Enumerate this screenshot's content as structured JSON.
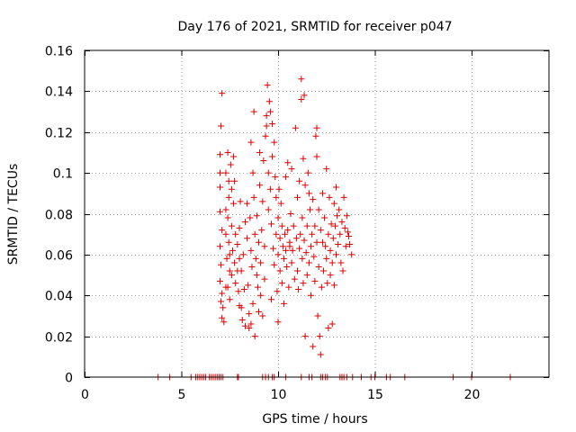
{
  "chart_data": {
    "type": "scatter",
    "title": "Day 176 of 2021, SRMTID for receiver p047",
    "xlabel": "GPS time / hours",
    "ylabel": "SRMTID / TECUs",
    "xlim": [
      0,
      24
    ],
    "ylim": [
      0,
      0.16
    ],
    "x_ticks": [
      0,
      5,
      10,
      15,
      20
    ],
    "x_tick_labels": [
      "0",
      "5",
      "10",
      "15",
      "20"
    ],
    "y_ticks": [
      0,
      0.02,
      0.04,
      0.06,
      0.08,
      0.1,
      0.12,
      0.14,
      0.16
    ],
    "y_tick_labels": [
      "0",
      "0.02",
      "0.04",
      "0.06",
      "0.08",
      "0.1",
      "0.12",
      "0.14",
      "0.16"
    ],
    "grid": true,
    "marker": "+",
    "color": "#dd0000",
    "points": [
      [
        7.1,
        0.139
      ],
      [
        7.05,
        0.123
      ],
      [
        7.0,
        0.109
      ],
      [
        7.0,
        0.1
      ],
      [
        7.0,
        0.093
      ],
      [
        7.0,
        0.081
      ],
      [
        7.1,
        0.072
      ],
      [
        7.0,
        0.064
      ],
      [
        7.05,
        0.055
      ],
      [
        7.0,
        0.047
      ],
      [
        7.1,
        0.041
      ],
      [
        7.05,
        0.037
      ],
      [
        7.15,
        0.034
      ],
      [
        7.1,
        0.029
      ],
      [
        7.2,
        0.027
      ],
      [
        7.3,
        0.1
      ],
      [
        7.3,
        0.082
      ],
      [
        7.3,
        0.07
      ],
      [
        7.35,
        0.058
      ],
      [
        7.3,
        0.044
      ],
      [
        7.4,
        0.11
      ],
      [
        7.45,
        0.096
      ],
      [
        7.45,
        0.088
      ],
      [
        7.4,
        0.078
      ],
      [
        7.45,
        0.066
      ],
      [
        7.5,
        0.06
      ],
      [
        7.5,
        0.052
      ],
      [
        7.4,
        0.044
      ],
      [
        7.5,
        0.038
      ],
      [
        7.55,
        0.104
      ],
      [
        7.6,
        0.092
      ],
      [
        7.6,
        0.074
      ],
      [
        7.65,
        0.062
      ],
      [
        7.6,
        0.05
      ],
      [
        7.7,
        0.108
      ],
      [
        7.75,
        0.096
      ],
      [
        7.7,
        0.085
      ],
      [
        7.8,
        0.07
      ],
      [
        7.75,
        0.056
      ],
      [
        7.8,
        0.046
      ],
      [
        7.9,
        0.065
      ],
      [
        7.9,
        0.052
      ],
      [
        7.95,
        0.042
      ],
      [
        8.0,
        0.058
      ],
      [
        8.0,
        0.035
      ],
      [
        8.0,
        0.073
      ],
      [
        8.05,
        0.086
      ],
      [
        8.1,
        0.052
      ],
      [
        8.1,
        0.034
      ],
      [
        8.15,
        0.028
      ],
      [
        8.2,
        0.06
      ],
      [
        8.25,
        0.043
      ],
      [
        8.3,
        0.025
      ],
      [
        8.3,
        0.076
      ],
      [
        8.4,
        0.085
      ],
      [
        8.4,
        0.068
      ],
      [
        8.45,
        0.045
      ],
      [
        8.5,
        0.031
      ],
      [
        8.5,
        0.024
      ],
      [
        8.55,
        0.078
      ],
      [
        8.6,
        0.115
      ],
      [
        8.6,
        0.062
      ],
      [
        8.6,
        0.026
      ],
      [
        8.65,
        0.054
      ],
      [
        8.7,
        0.036
      ],
      [
        8.7,
        0.1
      ],
      [
        8.75,
        0.13
      ],
      [
        8.75,
        0.088
      ],
      [
        8.8,
        0.07
      ],
      [
        8.8,
        0.02
      ],
      [
        8.85,
        0.058
      ],
      [
        8.9,
        0.05
      ],
      [
        8.9,
        0.079
      ],
      [
        8.95,
        0.044
      ],
      [
        9.0,
        0.066
      ],
      [
        9.0,
        0.032
      ],
      [
        9.05,
        0.094
      ],
      [
        9.05,
        0.11
      ],
      [
        9.1,
        0.056
      ],
      [
        9.1,
        0.04
      ],
      [
        9.15,
        0.072
      ],
      [
        9.2,
        0.086
      ],
      [
        9.2,
        0.03
      ],
      [
        9.25,
        0.106
      ],
      [
        9.3,
        0.064
      ],
      [
        9.3,
        0.048
      ],
      [
        9.35,
        0.118
      ],
      [
        9.4,
        0.123
      ],
      [
        9.45,
        0.143
      ],
      [
        9.4,
        0.128
      ],
      [
        9.5,
        0.1
      ],
      [
        9.5,
        0.082
      ],
      [
        9.55,
        0.135
      ],
      [
        9.6,
        0.13
      ],
      [
        9.6,
        0.092
      ],
      [
        9.65,
        0.075
      ],
      [
        9.65,
        0.038
      ],
      [
        9.7,
        0.124
      ],
      [
        9.7,
        0.108
      ],
      [
        9.75,
        0.063
      ],
      [
        9.8,
        0.115
      ],
      [
        9.8,
        0.055
      ],
      [
        9.85,
        0.098
      ],
      [
        9.9,
        0.07
      ],
      [
        9.9,
        0.088
      ],
      [
        9.95,
        0.042
      ],
      [
        10.0,
        0.078
      ],
      [
        10.0,
        0.06
      ],
      [
        10.0,
        0.027
      ],
      [
        10.05,
        0.092
      ],
      [
        10.1,
        0.068
      ],
      [
        10.1,
        0.052
      ],
      [
        10.15,
        0.085
      ],
      [
        10.2,
        0.074
      ],
      [
        10.2,
        0.046
      ],
      [
        10.25,
        0.064
      ],
      [
        10.3,
        0.058
      ],
      [
        10.3,
        0.036
      ],
      [
        10.35,
        0.07
      ],
      [
        10.4,
        0.098
      ],
      [
        10.4,
        0.062
      ],
      [
        10.45,
        0.054
      ],
      [
        10.5,
        0.105
      ],
      [
        10.5,
        0.072
      ],
      [
        10.55,
        0.044
      ],
      [
        10.6,
        0.064
      ],
      [
        10.6,
        0.066
      ],
      [
        10.65,
        0.08
      ],
      [
        10.7,
        0.102
      ],
      [
        10.7,
        0.056
      ],
      [
        10.75,
        0.062
      ],
      [
        10.8,
        0.074
      ],
      [
        10.85,
        0.048
      ],
      [
        10.9,
        0.122
      ],
      [
        10.95,
        0.068
      ],
      [
        11.0,
        0.088
      ],
      [
        11.0,
        0.052
      ],
      [
        11.05,
        0.043
      ],
      [
        11.1,
        0.096
      ],
      [
        11.1,
        0.063
      ],
      [
        11.15,
        0.07
      ],
      [
        11.2,
        0.146
      ],
      [
        11.2,
        0.136
      ],
      [
        11.25,
        0.078
      ],
      [
        11.25,
        0.058
      ],
      [
        11.3,
        0.107
      ],
      [
        11.3,
        0.046
      ],
      [
        11.35,
        0.138
      ],
      [
        11.35,
        0.067
      ],
      [
        11.4,
        0.02
      ],
      [
        11.4,
        0.094
      ],
      [
        11.45,
        0.061
      ],
      [
        11.5,
        0.074
      ],
      [
        11.5,
        0.05
      ],
      [
        11.55,
        0.1
      ],
      [
        11.6,
        0.09
      ],
      [
        11.6,
        0.056
      ],
      [
        11.65,
        0.082
      ],
      [
        11.7,
        0.064
      ],
      [
        11.7,
        0.04
      ],
      [
        11.75,
        0.07
      ],
      [
        11.8,
        0.087
      ],
      [
        11.8,
        0.015
      ],
      [
        11.85,
        0.059
      ],
      [
        11.9,
        0.074
      ],
      [
        11.9,
        0.047
      ],
      [
        11.95,
        0.118
      ],
      [
        12.0,
        0.108
      ],
      [
        12.0,
        0.122
      ],
      [
        12.0,
        0.066
      ],
      [
        12.05,
        0.03
      ],
      [
        12.1,
        0.082
      ],
      [
        12.1,
        0.054
      ],
      [
        12.15,
        0.02
      ],
      [
        12.2,
        0.011
      ],
      [
        12.2,
        0.072
      ],
      [
        12.25,
        0.044
      ],
      [
        12.3,
        0.09
      ],
      [
        12.3,
        0.066
      ],
      [
        12.35,
        0.052
      ],
      [
        12.4,
        0.078
      ],
      [
        12.45,
        0.064
      ],
      [
        12.5,
        0.102
      ],
      [
        12.5,
        0.058
      ],
      [
        12.55,
        0.046
      ],
      [
        12.6,
        0.07
      ],
      [
        12.6,
        0.024
      ],
      [
        12.65,
        0.088
      ],
      [
        12.7,
        0.062
      ],
      [
        12.7,
        0.05
      ],
      [
        12.75,
        0.075
      ],
      [
        12.8,
        0.026
      ],
      [
        12.8,
        0.056
      ],
      [
        12.85,
        0.068
      ],
      [
        12.9,
        0.085
      ],
      [
        12.9,
        0.045
      ],
      [
        12.95,
        0.074
      ],
      [
        13.0,
        0.093
      ],
      [
        13.0,
        0.06
      ],
      [
        13.05,
        0.079
      ],
      [
        13.1,
        0.065
      ],
      [
        13.15,
        0.082
      ],
      [
        13.2,
        0.07
      ],
      [
        13.25,
        0.056
      ],
      [
        13.3,
        0.076
      ],
      [
        13.35,
        0.052
      ],
      [
        13.4,
        0.088
      ],
      [
        13.45,
        0.073
      ],
      [
        13.5,
        0.064
      ],
      [
        13.55,
        0.079
      ],
      [
        13.6,
        0.071
      ],
      [
        13.65,
        0.069
      ],
      [
        13.7,
        0.065
      ],
      [
        13.8,
        0.06
      ]
    ],
    "zero_points_x": [
      3.8,
      4.4,
      5.5,
      5.75,
      5.85,
      5.95,
      6.05,
      6.15,
      6.25,
      6.45,
      6.55,
      6.65,
      6.75,
      6.85,
      6.95,
      7.05,
      7.15,
      7.9,
      7.95,
      9.2,
      9.35,
      9.5,
      9.7,
      9.8,
      10.4,
      11.2,
      11.6,
      11.75,
      12.2,
      12.3,
      12.45,
      12.55,
      13.2,
      13.3,
      13.4,
      13.55,
      13.85,
      14.3,
      14.8,
      15.0,
      15.6,
      15.8,
      16.55,
      19.05,
      20.0,
      22.0
    ]
  }
}
